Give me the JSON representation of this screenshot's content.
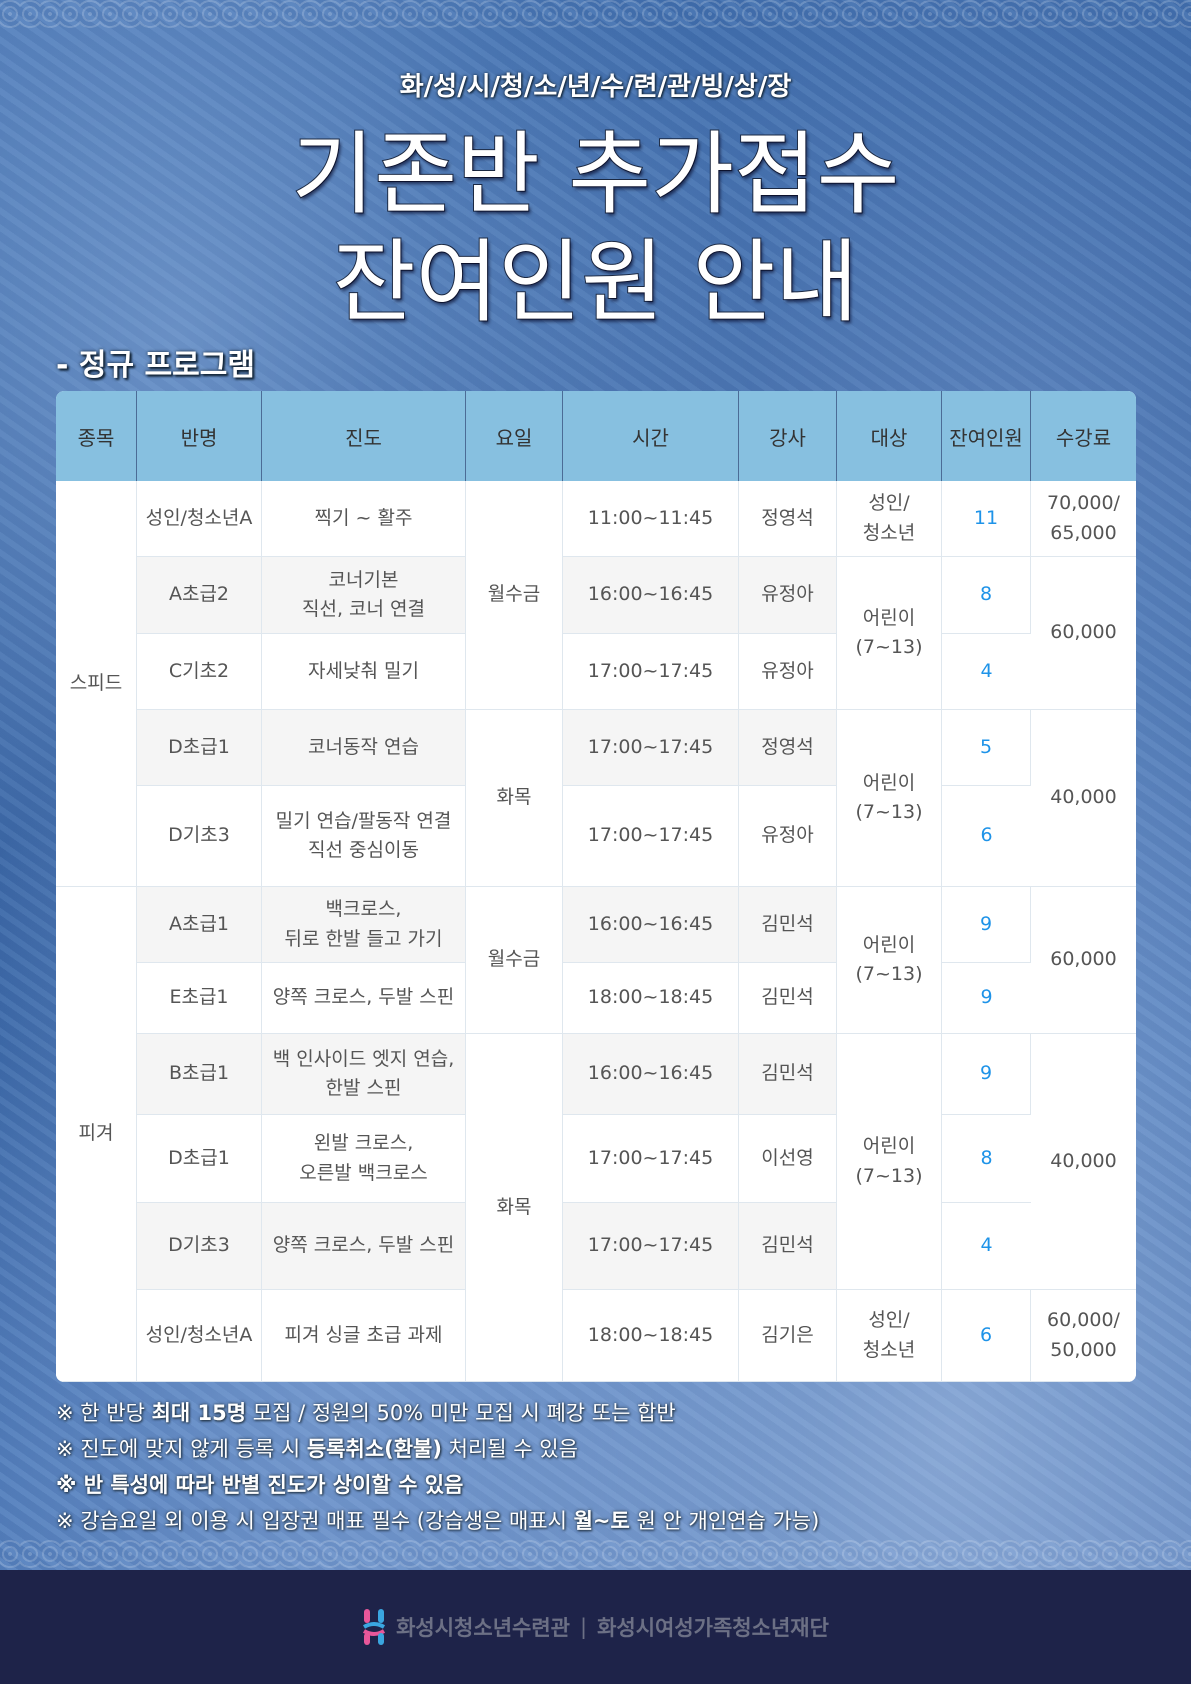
{
  "header": {
    "subtitle": "화/성/시/청/소/년/수/련/관/빙/상/장",
    "title_line1": "기존반 추가접수",
    "title_line2": "잔여인원 안내",
    "section": "- 정규 프로그램"
  },
  "table": {
    "columns": [
      "종목",
      "반명",
      "진도",
      "요일",
      "시간",
      "강사",
      "대상",
      "잔여인원",
      "수강료"
    ],
    "rows": [
      {
        "class": "성인/청소년A",
        "progress": "찍기 ~ 활주",
        "time": "11:00~11:45",
        "coach": "정영석",
        "remaining": "11"
      },
      {
        "class": "A초급2",
        "progress": "코너기본\n직선, 코너 연결",
        "time": "16:00~16:45",
        "coach": "유정아",
        "remaining": "8"
      },
      {
        "class": "C기초2",
        "progress": "자세낮춰 밀기",
        "time": "17:00~17:45",
        "coach": "유정아",
        "remaining": "4"
      },
      {
        "class": "D초급1",
        "progress": "코너동작 연습",
        "time": "17:00~17:45",
        "coach": "정영석",
        "remaining": "5"
      },
      {
        "class": "D기초3",
        "progress": "밀기 연습/팔동작 연결\n직선 중심이동",
        "time": "17:00~17:45",
        "coach": "유정아",
        "remaining": "6"
      },
      {
        "class": "A초급1",
        "progress": "백크로스,\n뒤로 한발 들고 가기",
        "time": "16:00~16:45",
        "coach": "김민석",
        "remaining": "9"
      },
      {
        "class": "E초급1",
        "progress": "양쪽 크로스, 두발 스핀",
        "time": "18:00~18:45",
        "coach": "김민석",
        "remaining": "9"
      },
      {
        "class": "B초급1",
        "progress": "백 인사이드 엣지 연습,\n한발 스핀",
        "time": "16:00~16:45",
        "coach": "김민석",
        "remaining": "9"
      },
      {
        "class": "D초급1",
        "progress": "왼발 크로스,\n오른발 백크로스",
        "time": "17:00~17:45",
        "coach": "이선영",
        "remaining": "8"
      },
      {
        "class": "D기초3",
        "progress": "양쪽 크로스, 두발 스핀",
        "time": "17:00~17:45",
        "coach": "김민석",
        "remaining": "4"
      },
      {
        "class": "성인/청소년A",
        "progress": "피겨 싱글 초급 과제",
        "time": "18:00~18:45",
        "coach": "김기은",
        "remaining": "6"
      }
    ],
    "sports": [
      {
        "label": "스피드",
        "rows": 5
      },
      {
        "label": "피겨",
        "rows": 6
      }
    ],
    "days": [
      {
        "label": "월수금",
        "rows": 3
      },
      {
        "label": "화목",
        "rows": 2
      },
      {
        "label": "월수금",
        "rows": 2
      },
      {
        "label": "화목",
        "rows": 4
      }
    ],
    "targets": [
      {
        "label": "성인/\n청소년",
        "rows": 1
      },
      {
        "label": "어린이\n(7~13)",
        "rows": 2
      },
      {
        "label": "어린이\n(7~13)",
        "rows": 2
      },
      {
        "label": "어린이\n(7~13)",
        "rows": 2
      },
      {
        "label": "어린이\n(7~13)",
        "rows": 3
      },
      {
        "label": "성인/\n청소년",
        "rows": 1
      }
    ],
    "fees": [
      {
        "label": "70,000/\n65,000",
        "rows": 1
      },
      {
        "label": "60,000",
        "rows": 2
      },
      {
        "label": "40,000",
        "rows": 2
      },
      {
        "label": "60,000",
        "rows": 2
      },
      {
        "label": "40,000",
        "rows": 3
      },
      {
        "label": "60,000/\n50,000",
        "rows": 1
      }
    ]
  },
  "notes": [
    {
      "pre": "※ 한 반당 ",
      "bold": "최대 15명",
      "post": " 모집 / 정원의 50% 미만 모집 시 폐강 또는 합반"
    },
    {
      "pre": "※ 진도에 맞지 않게 등록 시 ",
      "bold": "등록취소(환불)",
      "post": " 처리될 수 있음"
    },
    {
      "pre": "",
      "bold": "※ 반 특성에 따라 반별 진도가 상이할 수 있음",
      "post": ""
    },
    {
      "pre": "※ 강습요일 외 이용 시 입장권 매표 필수 (강습생은 매표시 ",
      "bold": "월~토",
      "post": " 원 안 개인연습 가능)"
    }
  ],
  "footer": {
    "org1": "화성시청소년수련관",
    "separator": "|",
    "org2": "화성시여성가족청소년재단"
  },
  "colors": {
    "header_bg": "#87c0e0",
    "remaining": "#1e93e8",
    "footer_bg": "#1e2349"
  }
}
